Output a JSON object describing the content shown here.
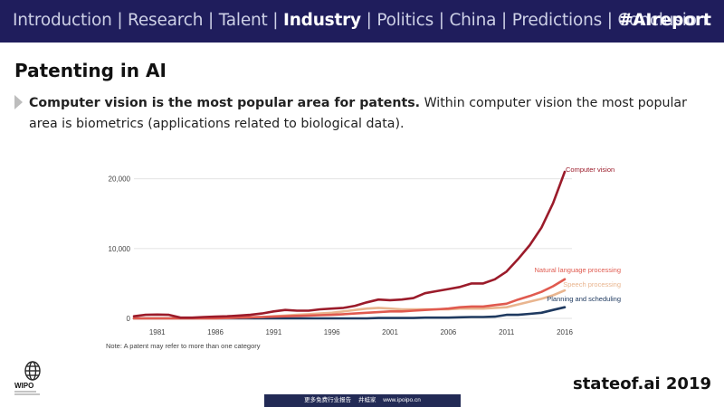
{
  "nav": {
    "items": [
      "Introduction",
      "Research",
      "Talent",
      "Industry",
      "Politics",
      "China",
      "Predictions",
      "Conclusion"
    ],
    "active": "Industry",
    "hashtag": "#AIreport"
  },
  "slide": {
    "title": "Patenting in AI",
    "bullet_bold": "Computer vision is the most popular area for patents.",
    "bullet_rest": " Within computer vision the most popular area is biometrics (applications related to biological data)."
  },
  "brand": "stateof.ai 2019",
  "logo_text": "WIPO",
  "footer": {
    "left": "更多免费行业报告",
    "mid": "井蛙家",
    "right": "www.ipoipo.cn"
  },
  "chart_data": {
    "type": "line",
    "note": "Note: A patent may refer to more than one category",
    "x": [
      1979,
      1980,
      1981,
      1982,
      1983,
      1984,
      1985,
      1986,
      1987,
      1988,
      1989,
      1990,
      1991,
      1992,
      1993,
      1994,
      1995,
      1996,
      1997,
      1998,
      1999,
      2000,
      2001,
      2002,
      2003,
      2004,
      2005,
      2006,
      2007,
      2008,
      2009,
      2010,
      2011,
      2012,
      2013,
      2014,
      2015,
      2016
    ],
    "xticks": [
      "1981",
      "1986",
      "1991",
      "1996",
      "2001",
      "2006",
      "2011",
      "2016"
    ],
    "xtick_values": [
      1981,
      1986,
      1991,
      1996,
      2001,
      2006,
      2011,
      2016
    ],
    "yticks": [
      "0",
      "10,000",
      "20,000"
    ],
    "ytick_values": [
      0,
      10000,
      20000
    ],
    "xlim": [
      1979,
      2016
    ],
    "ylim": [
      0,
      21000
    ],
    "grid": "horizontal",
    "series": [
      {
        "name": "Computer vision",
        "color": "#9b1b2a",
        "values": [
          300,
          500,
          550,
          500,
          100,
          100,
          200,
          250,
          300,
          400,
          500,
          700,
          1000,
          1200,
          1100,
          1100,
          1300,
          1400,
          1500,
          1800,
          2300,
          2700,
          2600,
          2700,
          2900,
          3600,
          3900,
          4200,
          4500,
          5000,
          5000,
          5600,
          6700,
          8500,
          10500,
          13000,
          16500,
          21000
        ]
      },
      {
        "name": "Natural language processing",
        "color": "#e05a4f",
        "values": [
          0,
          0,
          0,
          0,
          0,
          0,
          0,
          0,
          50,
          100,
          150,
          200,
          250,
          300,
          350,
          400,
          450,
          500,
          600,
          700,
          800,
          900,
          1000,
          1000,
          1100,
          1200,
          1300,
          1400,
          1600,
          1700,
          1700,
          1900,
          2100,
          2700,
          3200,
          3800,
          4600,
          5600
        ]
      },
      {
        "name": "Speech processing",
        "color": "#e9b58f",
        "values": [
          0,
          0,
          0,
          0,
          0,
          0,
          0,
          0,
          50,
          100,
          150,
          200,
          300,
          400,
          500,
          600,
          700,
          800,
          1000,
          1200,
          1400,
          1500,
          1400,
          1300,
          1300,
          1300,
          1300,
          1300,
          1400,
          1400,
          1400,
          1500,
          1600,
          2000,
          2400,
          2800,
          3300,
          4000
        ]
      },
      {
        "name": "Planning and scheduling",
        "color": "#1f3a60",
        "values": [
          0,
          0,
          0,
          0,
          0,
          0,
          0,
          0,
          0,
          0,
          0,
          0,
          0,
          0,
          0,
          0,
          0,
          0,
          0,
          0,
          0,
          50,
          50,
          50,
          50,
          100,
          100,
          100,
          150,
          200,
          200,
          250,
          500,
          500,
          650,
          800,
          1200,
          1600
        ]
      }
    ]
  }
}
